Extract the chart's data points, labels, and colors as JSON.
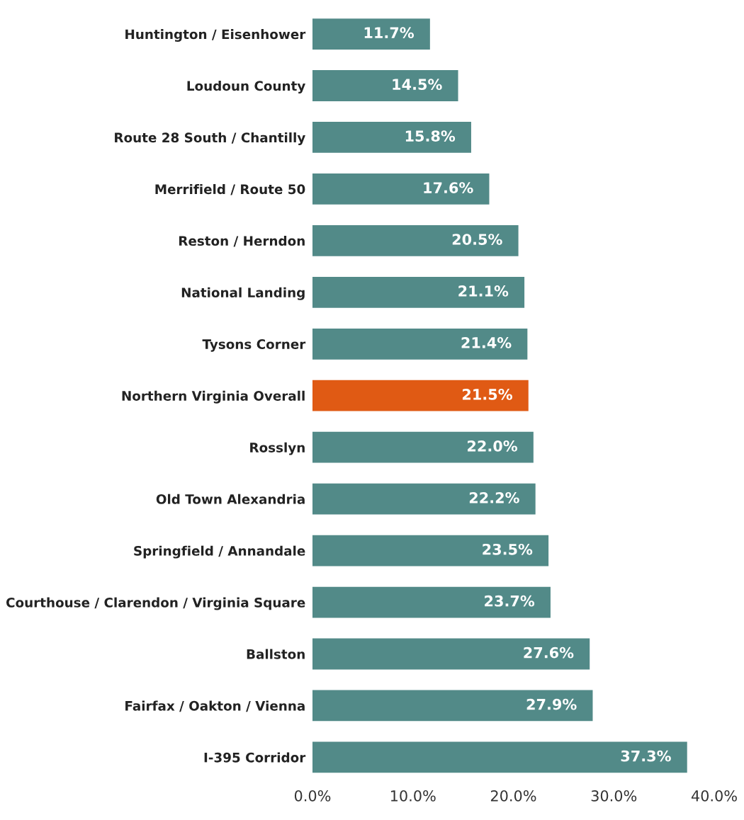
{
  "chart_data": {
    "type": "bar",
    "orientation": "horizontal",
    "categories": [
      "Huntington / Eisenhower",
      "Loudoun County",
      "Route 28 South / Chantilly",
      "Merrifield / Route 50",
      "Reston / Herndon",
      "National Landing",
      "Tysons Corner",
      "Northern Virginia Overall",
      "Rosslyn",
      "Old Town Alexandria",
      "Springfield / Annandale",
      "Courthouse / Clarendon / Virginia Square",
      "Ballston",
      "Fairfax / Oakton / Vienna",
      "I-395 Corridor"
    ],
    "values": [
      11.7,
      14.5,
      15.8,
      17.6,
      20.5,
      21.1,
      21.4,
      21.5,
      22.0,
      22.2,
      23.5,
      23.7,
      27.6,
      27.9,
      37.3
    ],
    "colors": [
      "#528a88",
      "#528a88",
      "#528a88",
      "#528a88",
      "#528a88",
      "#528a88",
      "#528a88",
      "#e05a14",
      "#528a88",
      "#528a88",
      "#528a88",
      "#528a88",
      "#528a88",
      "#528a88",
      "#528a88"
    ],
    "value_labels": [
      "11.7%",
      "14.5%",
      "15.8%",
      "17.6%",
      "20.5%",
      "21.1%",
      "21.4%",
      "21.5%",
      "22.0%",
      "22.2%",
      "23.5%",
      "23.7%",
      "27.6%",
      "27.9%",
      "37.3%"
    ],
    "xlim": [
      0,
      40
    ],
    "xticks": [
      {
        "value": 0,
        "label": "0.0%"
      },
      {
        "value": 10,
        "label": "10.0%"
      },
      {
        "value": 20,
        "label": "20.0%"
      },
      {
        "value": 30,
        "label": "30.0%"
      },
      {
        "value": 40,
        "label": "40.0%"
      }
    ],
    "grid": false,
    "legend": false
  }
}
